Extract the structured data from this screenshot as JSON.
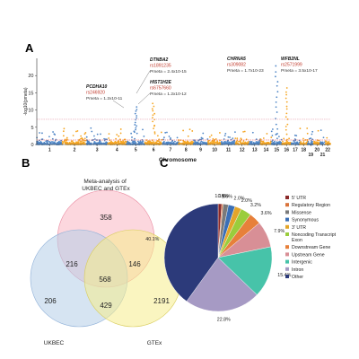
{
  "panels": {
    "a": "A",
    "b": "B",
    "c": "C"
  },
  "chart_data": [
    {
      "type": "scatter",
      "panel": "A",
      "xlabel": "Chromosome",
      "ylabel": "-log10(pmeta)",
      "ylim": [
        0,
        25
      ],
      "yticks": [
        0,
        5,
        10,
        15,
        20
      ],
      "x_tick_labels": [
        "1",
        "2",
        "3",
        "4",
        "5",
        "6",
        "7",
        "8",
        "9",
        "10",
        "11",
        "12",
        "13",
        "14",
        "15",
        "16",
        "17",
        "18",
        "19",
        "20",
        "21",
        "22"
      ],
      "series_colors": {
        "odd": "#4f86c6",
        "even": "#f5a623"
      },
      "thresholds": [
        {
          "value": 7.3,
          "color": "#e8a0b0"
        },
        {
          "value": 1.3,
          "color": "#e83c3c"
        }
      ],
      "peaks": [
        {
          "gene": "PCDHA10",
          "snp": "rs246920",
          "pvalue": "Pmeta = 1.2x10-11",
          "chromosome": "5",
          "y": 10.9
        },
        {
          "gene": "DTNBA2",
          "snp": "rs1891235",
          "pvalue": "Pmeta = 2.4x10-15",
          "chromosome": "6",
          "y": 14.6
        },
        {
          "gene": "HIST1H2E",
          "snp": "rs6757660",
          "pvalue": "Pmeta = 1.2x10-12",
          "chromosome": "6",
          "y": 11.9
        },
        {
          "gene": "CHRNA5",
          "snp": "rs309082",
          "pvalue": "Pmeta = 1.7x10-23",
          "chromosome": "15",
          "y": 22.8
        },
        {
          "gene": "WFB2NL",
          "snp": "rs2571999",
          "pvalue": "Pmeta = 3.5x10-17",
          "chromosome": "16",
          "y": 16.5
        }
      ]
    },
    {
      "type": "venn",
      "panel": "B",
      "sets": [
        {
          "name": "Meta-analysis of UKBEC and GTEx",
          "color": "#f9b6c3"
        },
        {
          "name": "UKBEC",
          "color": "#b4cde8"
        },
        {
          "name": "GTEx",
          "color": "#f6ed8c"
        }
      ],
      "regions": {
        "meta_only": 358,
        "ukbec_only": 206,
        "gtex_only": 2191,
        "meta_ukbec": 216,
        "meta_gtex": 146,
        "ukbec_gtex": 429,
        "all": 568
      }
    },
    {
      "type": "pie",
      "panel": "C",
      "slices": [
        {
          "name": "5' UTR",
          "value": 1.1,
          "label": "1.1%",
          "color": "#8b2a2a"
        },
        {
          "name": "Regulatory Region",
          "value": 0.4,
          "label": "0.4%",
          "color": "#d9733a"
        },
        {
          "name": "Missense",
          "value": 1.6,
          "label": "1.6%",
          "color": "#7a7a7a"
        },
        {
          "name": "Synonymous",
          "value": 2.0,
          "label": "2.0%",
          "color": "#3b6fb6"
        },
        {
          "name": "3' UTR",
          "value": 2.0,
          "label": "2.0%",
          "color": "#e3a52a"
        },
        {
          "name": "Noncoding Transcript Exon",
          "value": 3.2,
          "label": "3.2%",
          "color": "#9acd3c"
        },
        {
          "name": "Downstream Gene",
          "value": 3.6,
          "label": "3.6%",
          "color": "#e7803a"
        },
        {
          "name": "Upstream Gene",
          "value": 7.9,
          "label": "7.9%",
          "color": "#d88f96"
        },
        {
          "name": "Intergenic",
          "value": 15.4,
          "label": "15.4%",
          "color": "#47c3a9"
        },
        {
          "name": "Intron",
          "value": 22.8,
          "label": "22.8%",
          "color": "#a69ac4"
        },
        {
          "name": "Other",
          "value": 40.1,
          "label": "40.1%",
          "color": "#2c3a7a"
        }
      ],
      "legend_names": [
        "5' UTR",
        "Regulatory Region",
        "Missense",
        "Synonymous",
        "3' UTR",
        "Noncoding Transcript Exon",
        "Downstream Gene",
        "Upstream Gene",
        "Intergenic",
        "Intron",
        "Other"
      ],
      "legend_placement": "right"
    }
  ]
}
